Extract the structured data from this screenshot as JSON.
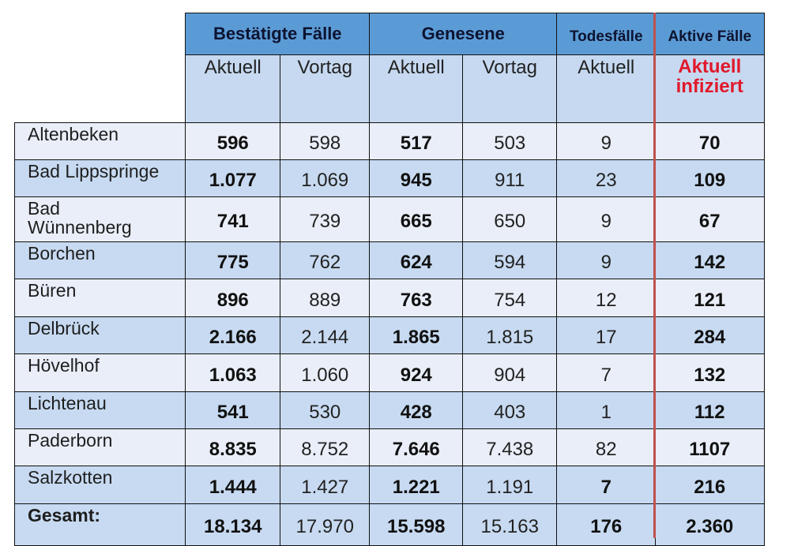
{
  "header": {
    "groups": [
      {
        "label": "Bestätigte Fälle",
        "span": 2
      },
      {
        "label": "Genesene",
        "span": 2
      },
      {
        "label": "Todesfälle",
        "span": 1
      },
      {
        "label": "Aktive Fälle",
        "span": 1
      }
    ],
    "subheaders": [
      "Aktuell",
      "Vortag",
      "Aktuell",
      "Vortag",
      "Aktuell",
      "Aktuell\ninfiziert"
    ]
  },
  "accent_colors": {
    "group_header_bg": "#5b9bd5",
    "subheader_bg": "#c6d9f0",
    "row_light": "#e9eef8",
    "row_dark": "#c7daf1",
    "active_highlight": "#e0192b",
    "divider_red": "#c0504d"
  },
  "rows": [
    {
      "name": "Altenbeken",
      "values": [
        "596",
        "598",
        "517",
        "503",
        "9",
        "70"
      ]
    },
    {
      "name": "Bad Lippspringe",
      "values": [
        "1.077",
        "1.069",
        "945",
        "911",
        "23",
        "109"
      ]
    },
    {
      "name": "Bad Wünnenberg",
      "values": [
        "741",
        "739",
        "665",
        "650",
        "9",
        "67"
      ]
    },
    {
      "name": "Borchen",
      "values": [
        "775",
        "762",
        "624",
        "594",
        "9",
        "142"
      ]
    },
    {
      "name": "Büren",
      "values": [
        "896",
        "889",
        "763",
        "754",
        "12",
        "121"
      ]
    },
    {
      "name": "Delbrück",
      "values": [
        "2.166",
        "2.144",
        "1.865",
        "1.815",
        "17",
        "284"
      ]
    },
    {
      "name": "Hövelhof",
      "values": [
        "1.063",
        "1.060",
        "924",
        "904",
        "7",
        "132"
      ]
    },
    {
      "name": "Lichtenau",
      "values": [
        "541",
        "530",
        "428",
        "403",
        "1",
        "112"
      ]
    },
    {
      "name": "Paderborn",
      "values": [
        "8.835",
        "8.752",
        "7.646",
        "7.438",
        "82",
        "1107"
      ]
    },
    {
      "name": "Salzkotten",
      "values": [
        "1.444",
        "1.427",
        "1.221",
        "1.191",
        "7",
        "216"
      ]
    },
    {
      "name": "Gesamt:",
      "values": [
        "18.134",
        "17.970",
        "15.598",
        "15.163",
        "176",
        "2.360"
      ]
    }
  ]
}
